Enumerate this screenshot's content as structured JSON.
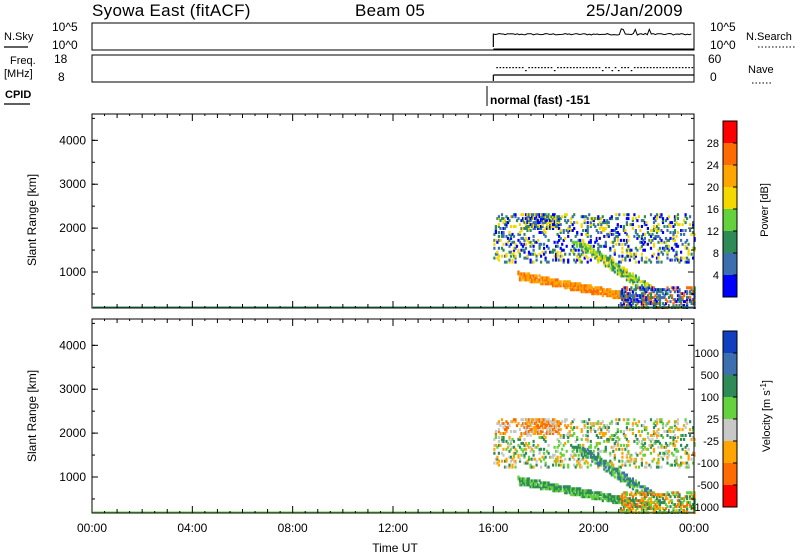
{
  "header": {
    "station": "Syowa East (fitACF)",
    "beam": "Beam 05",
    "date": "25/Jan/2009"
  },
  "top_panels": {
    "nsky_label": "N.Sky",
    "nsky_ticks": [
      "10^5",
      "10^0"
    ],
    "nsearch_label": "N.Search",
    "nsearch_ticks": [
      "10^5",
      "10^0"
    ],
    "freq_label_1": "Freq.",
    "freq_label_2": "[MHz]",
    "freq_ticks": [
      "18",
      "8"
    ],
    "nave_label": "Nave",
    "nave_ticks": [
      "60",
      "0"
    ],
    "cpid_label": "CPID",
    "cpid_text": "normal (fast) -151"
  },
  "chart_data": [
    {
      "type": "heatmap",
      "title": "",
      "xlabel": "",
      "ylabel": "Slant Range [km]",
      "x_ticks": [
        "00:00",
        "04:00",
        "08:00",
        "12:00",
        "16:00",
        "20:00",
        "00:00"
      ],
      "xlim_hours": [
        0,
        24
      ],
      "y_ticks": [
        1000,
        2000,
        3000,
        4000
      ],
      "ylim": [
        180,
        4600
      ],
      "data_start_hour": 16,
      "colorbar": {
        "label": "Power [dB]",
        "ticks": [
          "28",
          "24",
          "20",
          "16",
          "12",
          "8",
          "4"
        ],
        "colors": [
          "#ff0000",
          "#ff6b00",
          "#ffa500",
          "#f5d800",
          "#64d23c",
          "#2e8b57",
          "#3c6fb0",
          "#0000ff"
        ]
      },
      "echo_regions": [
        {
          "t0": 16.0,
          "t1": 24.0,
          "r0": 1200,
          "r1": 2300,
          "desc": "patchy far scatter"
        },
        {
          "t0": 17.0,
          "t1": 22.5,
          "r0": 400,
          "r1": 900,
          "desc": "descending band"
        },
        {
          "t0": 21.0,
          "t1": 24.0,
          "r0": 200,
          "r1": 600,
          "desc": "near scatter"
        }
      ]
    },
    {
      "type": "heatmap",
      "title": "",
      "xlabel": "Time UT",
      "ylabel": "Slant Range [km]",
      "x_ticks": [
        "00:00",
        "04:00",
        "08:00",
        "12:00",
        "16:00",
        "20:00",
        "00:00"
      ],
      "xlim_hours": [
        0,
        24
      ],
      "y_ticks": [
        1000,
        2000,
        3000,
        4000
      ],
      "ylim": [
        180,
        4600
      ],
      "data_start_hour": 16,
      "colorbar": {
        "label": "Velocity [m s^-1]",
        "ticks": [
          "1000",
          "500",
          "100",
          "25",
          "-25",
          "-100",
          "-500",
          "-1000"
        ],
        "colors": [
          "#1040c0",
          "#3c6fb0",
          "#2e8b57",
          "#64d23c",
          "#c8c8c8",
          "#ffa500",
          "#ff6b00",
          "#ff0000"
        ]
      }
    }
  ]
}
